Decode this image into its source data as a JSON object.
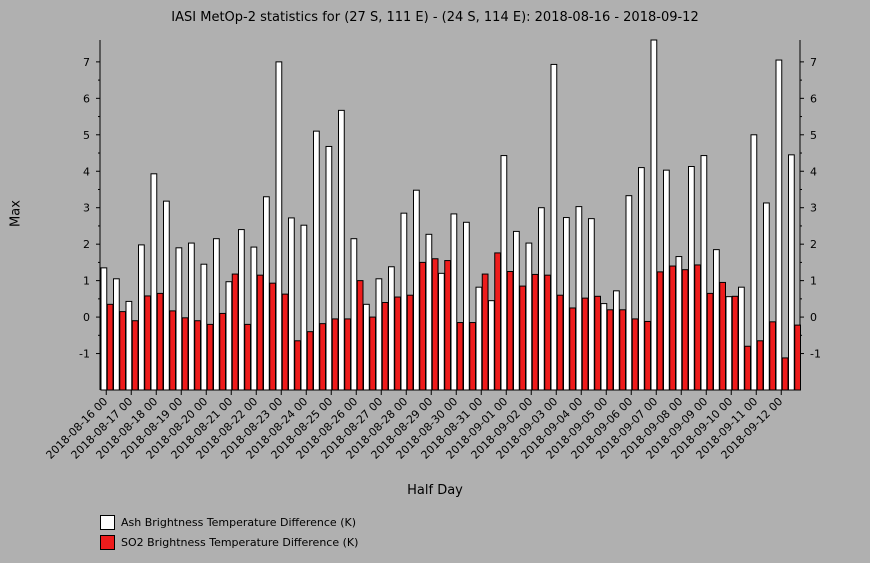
{
  "colors": {
    "background": "#b0b0b0",
    "ash": "#ffffff",
    "so2": "#ee1c1c",
    "axis": "#000000"
  },
  "chart_data": {
    "type": "bar",
    "title": "IASI MetOp-2 statistics for (27 S, 111 E) - (24 S, 114 E): 2018-08-16 - 2018-09-12",
    "xlabel": "Half Day",
    "ylabel": "Max",
    "ylim": [
      -2,
      7.6
    ],
    "yticks": [
      -1,
      0,
      1,
      2,
      3,
      4,
      5,
      6,
      7
    ],
    "ytick_labels": [
      "-1",
      "0",
      "1",
      "2",
      "3",
      "4",
      "5",
      "6",
      "7"
    ],
    "grid": false,
    "legend_position": "bottom-left",
    "x_tick_labels": [
      "2018-08-16 00",
      "2018-08-17 00",
      "2018-08-18 00",
      "2018-08-19 00",
      "2018-08-20 00",
      "2018-08-21 00",
      "2018-08-22 00",
      "2018-08-23 00",
      "2018-08-24 00",
      "2018-08-25 00",
      "2018-08-26 00",
      "2018-08-27 00",
      "2018-08-28 00",
      "2018-08-29 00",
      "2018-08-30 00",
      "2018-08-31 00",
      "2018-09-01 00",
      "2018-09-02 00",
      "2018-09-03 00",
      "2018-09-04 00",
      "2018-09-05 00",
      "2018-09-06 00",
      "2018-09-07 00",
      "2018-09-08 00",
      "2018-09-09 00",
      "2018-09-10 00",
      "2018-09-11 00",
      "2018-09-12 00"
    ],
    "series": [
      {
        "name": "Ash Brightness Temperature Difference (K)",
        "values": [
          1.35,
          1.05,
          0.43,
          1.98,
          3.93,
          3.18,
          1.9,
          2.03,
          1.45,
          2.15,
          0.97,
          2.4,
          1.92,
          3.3,
          7.0,
          2.72,
          2.52,
          5.1,
          4.68,
          5.67,
          2.15,
          0.35,
          1.05,
          1.38,
          2.85,
          3.48,
          2.27,
          1.2,
          2.83,
          2.6,
          0.82,
          0.45,
          4.43,
          2.35,
          2.03,
          3.0,
          6.93,
          2.73,
          3.03,
          2.7,
          0.37,
          0.72,
          3.33,
          4.1,
          7.6,
          4.03,
          1.66,
          4.13,
          4.43,
          1.85,
          0.56,
          0.82,
          5.0,
          3.13,
          7.05,
          4.45
        ]
      },
      {
        "name": "SO2 Brightness Temperature Difference (K)",
        "values": [
          0.35,
          0.15,
          -0.1,
          0.58,
          0.65,
          0.17,
          -0.02,
          -0.1,
          -0.2,
          0.1,
          1.18,
          -0.2,
          1.15,
          0.93,
          0.63,
          -0.65,
          -0.4,
          -0.18,
          -0.05,
          -0.05,
          1.0,
          0.0,
          0.4,
          0.55,
          0.6,
          1.5,
          1.6,
          1.55,
          -0.15,
          -0.15,
          1.18,
          1.76,
          1.25,
          0.85,
          1.17,
          1.15,
          0.6,
          0.25,
          0.52,
          0.57,
          0.2,
          0.2,
          -0.05,
          -0.12,
          1.24,
          1.4,
          1.3,
          1.43,
          0.65,
          0.95,
          0.57,
          -0.8,
          -0.65,
          -0.13,
          -1.12,
          -0.22
        ]
      }
    ]
  }
}
